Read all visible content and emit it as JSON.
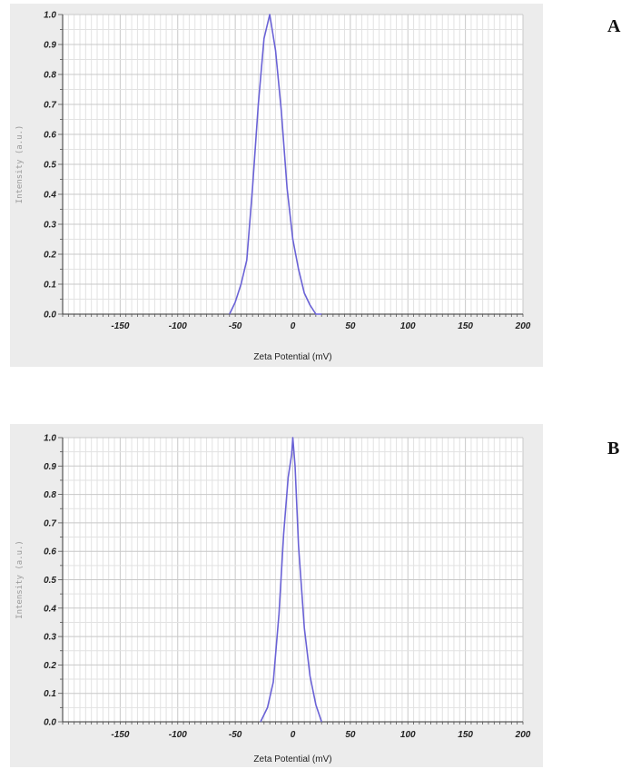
{
  "panels": [
    {
      "letter": "A"
    },
    {
      "letter": "B"
    }
  ],
  "chart_data": [
    {
      "type": "line",
      "title": "",
      "xlabel": "Zeta Potential (mV)",
      "ylabel": "Intensity (a.u.)",
      "xlim": [
        -200,
        200
      ],
      "ylim": [
        0,
        1.0
      ],
      "xticks": [
        "-150",
        "-100",
        "-50",
        "0",
        "50",
        "100",
        "150",
        "200"
      ],
      "yticks": [
        "0.0",
        "0.1",
        "0.2",
        "0.3",
        "0.4",
        "0.5",
        "0.6",
        "0.7",
        "0.8",
        "0.9",
        "1.0"
      ],
      "grid": true,
      "line_color": "#6a62d6",
      "series": [
        {
          "x": [
            -55,
            -50,
            -45,
            -40,
            -35,
            -30,
            -25,
            -20,
            -15,
            -10,
            -5,
            0,
            5,
            10,
            15,
            20,
            25
          ],
          "y": [
            0.0,
            0.04,
            0.1,
            0.18,
            0.42,
            0.7,
            0.92,
            1.0,
            0.88,
            0.68,
            0.42,
            0.25,
            0.15,
            0.07,
            0.03,
            0.0,
            0.0
          ]
        }
      ]
    },
    {
      "type": "line",
      "title": "",
      "xlabel": "Zeta Potential (mV)",
      "ylabel": "Intensity (a.u.)",
      "xlim": [
        -200,
        200
      ],
      "ylim": [
        0,
        1.0
      ],
      "xticks": [
        "-150",
        "-100",
        "-50",
        "0",
        "50",
        "100",
        "150",
        "200"
      ],
      "yticks": [
        "0.0",
        "0.1",
        "0.2",
        "0.3",
        "0.4",
        "0.5",
        "0.6",
        "0.7",
        "0.8",
        "0.9",
        "1.0"
      ],
      "grid": true,
      "line_color": "#6a62d6",
      "series": [
        {
          "x": [
            -28,
            -22,
            -17,
            -12,
            -8,
            -4,
            -1,
            0,
            2,
            5,
            10,
            15,
            20,
            25
          ],
          "y": [
            0.0,
            0.05,
            0.14,
            0.38,
            0.66,
            0.86,
            0.94,
            1.0,
            0.9,
            0.62,
            0.33,
            0.16,
            0.06,
            0.0
          ]
        }
      ]
    }
  ]
}
